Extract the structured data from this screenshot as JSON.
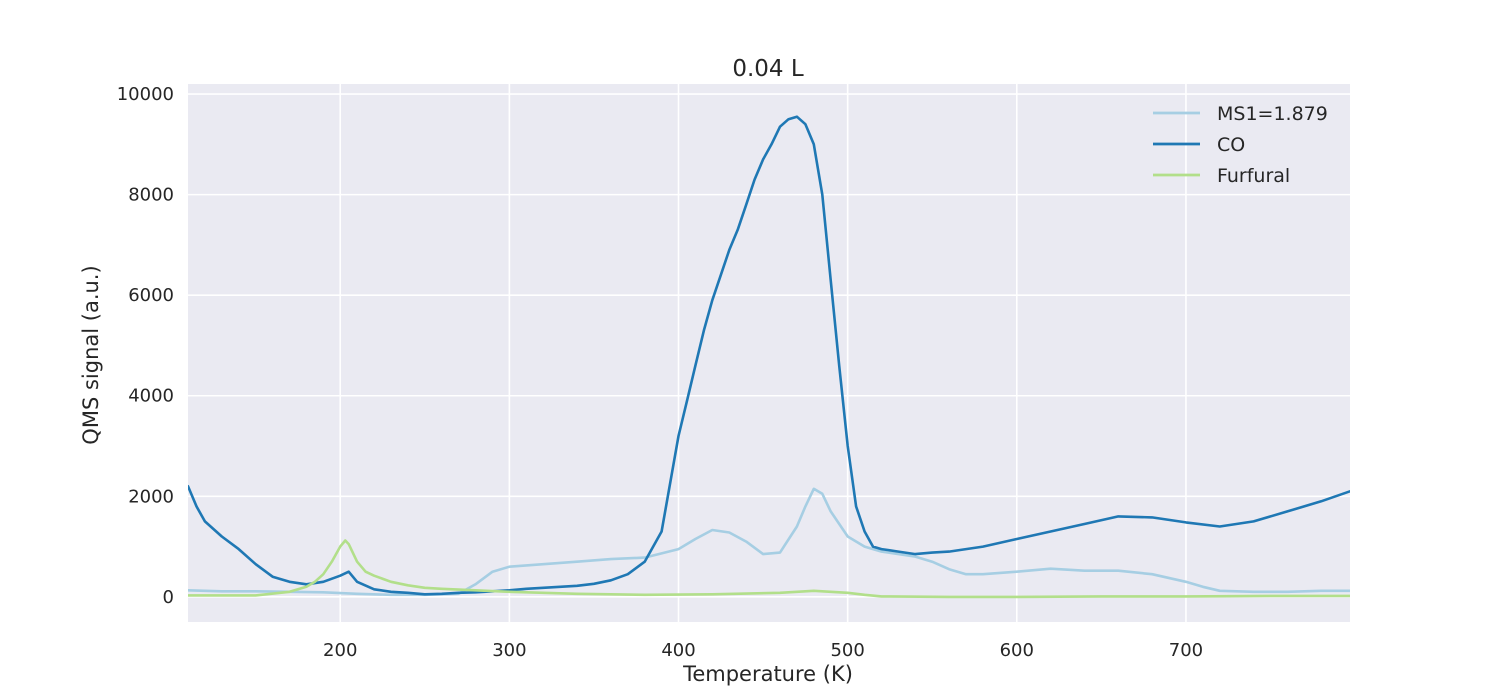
{
  "chart_data": {
    "type": "line",
    "title": "0.04 L",
    "xlabel": "Temperature (K)",
    "ylabel": "QMS signal (a.u.)",
    "xlim": [
      110,
      797
    ],
    "ylim": [
      -500,
      10200
    ],
    "xticks": [
      200,
      300,
      400,
      500,
      600,
      700
    ],
    "yticks": [
      0,
      2000,
      4000,
      6000,
      8000,
      10000
    ],
    "grid": true,
    "legend_position": "top-right",
    "background": "#eaeaf2",
    "series": [
      {
        "name": "MS1=1.879",
        "color": "#a6cee3",
        "x": [
          110,
          130,
          150,
          170,
          190,
          210,
          230,
          250,
          270,
          280,
          290,
          300,
          320,
          340,
          360,
          380,
          400,
          410,
          420,
          430,
          440,
          450,
          460,
          470,
          475,
          480,
          485,
          490,
          500,
          510,
          520,
          530,
          540,
          550,
          560,
          570,
          580,
          600,
          620,
          640,
          660,
          680,
          700,
          710,
          720,
          740,
          760,
          780,
          797
        ],
        "y": [
          130,
          110,
          110,
          100,
          90,
          60,
          40,
          40,
          60,
          250,
          500,
          600,
          650,
          700,
          750,
          780,
          950,
          1150,
          1330,
          1280,
          1100,
          850,
          880,
          1400,
          1800,
          2150,
          2050,
          1700,
          1200,
          1000,
          900,
          850,
          800,
          700,
          550,
          450,
          450,
          500,
          560,
          520,
          520,
          450,
          300,
          200,
          120,
          100,
          100,
          120,
          120
        ]
      },
      {
        "name": "CO",
        "color": "#1f78b4",
        "x": [
          110,
          115,
          120,
          130,
          140,
          150,
          160,
          170,
          180,
          190,
          200,
          205,
          210,
          220,
          230,
          240,
          250,
          260,
          270,
          280,
          290,
          300,
          310,
          320,
          330,
          340,
          350,
          360,
          370,
          380,
          390,
          400,
          405,
          410,
          415,
          420,
          425,
          430,
          435,
          440,
          445,
          450,
          455,
          460,
          465,
          470,
          475,
          480,
          485,
          490,
          495,
          500,
          505,
          510,
          515,
          520,
          530,
          540,
          550,
          560,
          570,
          580,
          600,
          620,
          640,
          660,
          680,
          700,
          720,
          740,
          760,
          780,
          797
        ],
        "y": [
          2200,
          1800,
          1500,
          1200,
          950,
          650,
          400,
          300,
          250,
          300,
          420,
          500,
          300,
          150,
          100,
          80,
          50,
          60,
          80,
          90,
          110,
          130,
          160,
          180,
          200,
          220,
          260,
          330,
          450,
          700,
          1300,
          3200,
          3900,
          4600,
          5300,
          5900,
          6400,
          6900,
          7300,
          7800,
          8300,
          8700,
          9000,
          9350,
          9500,
          9550,
          9400,
          9000,
          8000,
          6300,
          4600,
          3000,
          1800,
          1300,
          1000,
          950,
          900,
          850,
          880,
          900,
          950,
          1000,
          1150,
          1300,
          1450,
          1600,
          1580,
          1480,
          1400,
          1500,
          1700,
          1900,
          2100
        ]
      },
      {
        "name": "Furfural",
        "color": "#b2df8a",
        "x": [
          110,
          150,
          170,
          180,
          185,
          190,
          195,
          200,
          203,
          205,
          210,
          215,
          220,
          230,
          240,
          250,
          260,
          280,
          300,
          340,
          380,
          420,
          460,
          470,
          480,
          490,
          500,
          510,
          520,
          560,
          600,
          650,
          700,
          750,
          797
        ],
        "y": [
          30,
          30,
          100,
          200,
          300,
          450,
          700,
          1000,
          1120,
          1050,
          700,
          500,
          420,
          300,
          230,
          180,
          160,
          130,
          100,
          60,
          40,
          50,
          80,
          100,
          120,
          100,
          80,
          40,
          10,
          0,
          0,
          10,
          10,
          20,
          20
        ]
      }
    ]
  }
}
